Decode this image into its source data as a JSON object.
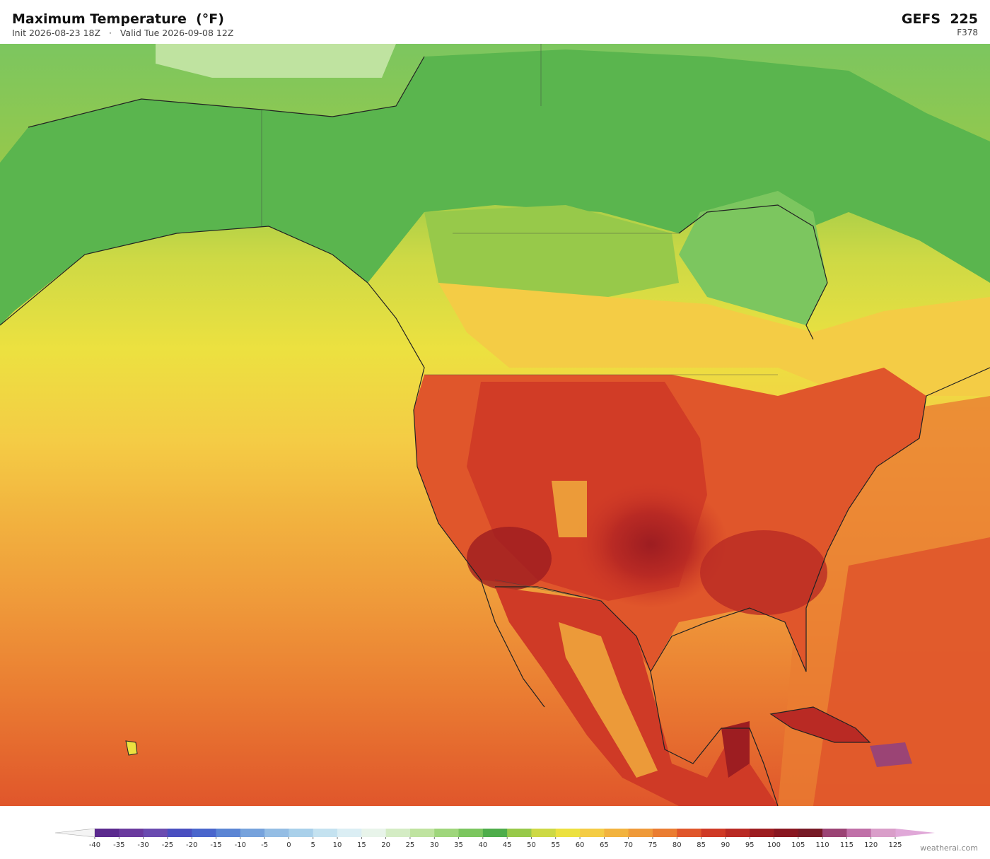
{
  "header": {
    "title": "Maximum Temperature  (°F)",
    "subtitle": "Init 2026-08-23 18Z   ·   Valid Tue 2026-09-08 12Z",
    "model": "GEFS  225",
    "forecast_hour": "F378"
  },
  "colorbar": {
    "ticks": [
      -40,
      -35,
      -30,
      -25,
      -20,
      -15,
      -10,
      -5,
      0,
      5,
      10,
      15,
      20,
      25,
      30,
      35,
      40,
      45,
      50,
      55,
      60,
      65,
      70,
      75,
      80,
      85,
      90,
      95,
      100,
      105,
      110,
      115,
      120,
      125
    ],
    "colors": [
      "#5b2a8e",
      "#6a3a9e",
      "#6a4bb0",
      "#4a4fc0",
      "#4a66cc",
      "#5b85d4",
      "#76a2dc",
      "#94bde4",
      "#a9d0ea",
      "#c4e2f0",
      "#dbeef4",
      "#e8f4ea",
      "#d4ecc4",
      "#bfe3a0",
      "#9fd67c",
      "#7cc65f",
      "#4ead4b",
      "#97c94a",
      "#cdd945",
      "#ece140",
      "#f4cc45",
      "#f2b33f",
      "#ef9a3a",
      "#ea7d32",
      "#e0562b",
      "#cf3a26",
      "#b92a24",
      "#9d1d21",
      "#891721",
      "#771a26",
      "#9b4475",
      "#c070a8",
      "#d99ec9"
    ],
    "under_color": "#f4f4f4",
    "over_color": "#e0a8d8"
  },
  "footer": {
    "credit": "weatherai.com"
  }
}
